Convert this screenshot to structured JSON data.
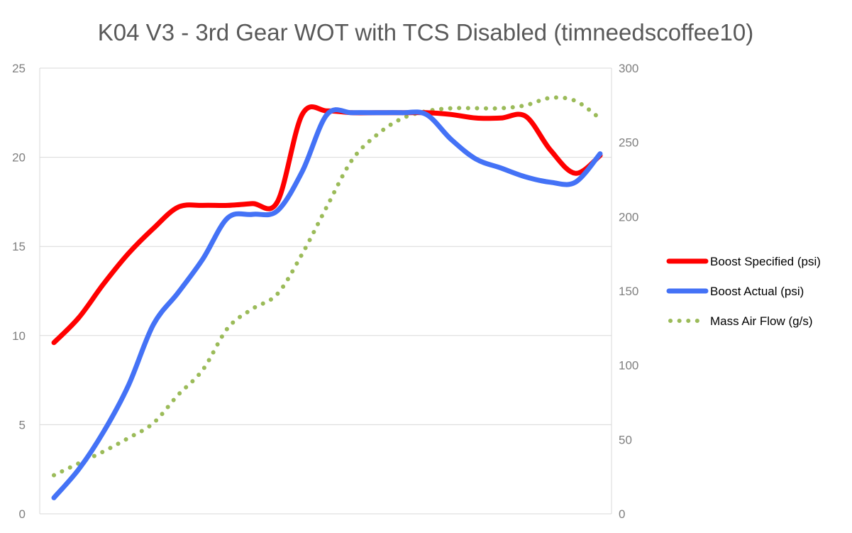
{
  "chart_data": {
    "type": "line",
    "title": "K04 V3 - 3rd Gear WOT with TCS Disabled (timneedscoffee10)",
    "y_left": {
      "range": [
        0,
        25
      ],
      "ticks": [
        "0",
        "5",
        "10",
        "15",
        "20",
        "25"
      ]
    },
    "y_right": {
      "range": [
        0,
        300
      ],
      "ticks": [
        "0",
        "50",
        "100",
        "150",
        "200",
        "250",
        "300"
      ]
    },
    "grid": true,
    "legend_position": "right",
    "series": [
      {
        "name": "Boost Specified (psi)",
        "axis": "left",
        "color": "#ff0000",
        "style": "solid",
        "values": [
          9.6,
          11.0,
          12.9,
          14.6,
          16.0,
          17.2,
          17.3,
          17.3,
          17.4,
          17.5,
          22.4,
          22.6,
          22.5,
          22.5,
          22.5,
          22.5,
          22.4,
          22.2,
          22.2,
          22.3,
          20.4,
          19.1,
          20.1
        ]
      },
      {
        "name": "Boost Actual (psi)",
        "axis": "left",
        "color": "#4472f6",
        "style": "solid",
        "values": [
          0.9,
          2.5,
          4.6,
          7.2,
          10.6,
          12.4,
          14.3,
          16.6,
          16.8,
          17.0,
          19.2,
          22.4,
          22.5,
          22.5,
          22.5,
          22.4,
          21.0,
          19.9,
          19.4,
          18.9,
          18.6,
          18.6,
          20.2
        ]
      },
      {
        "name": "Mass Air Flow (g/s)",
        "axis": "right",
        "color": "#9bbb59",
        "style": "dotted",
        "values": [
          26,
          34,
          42,
          51,
          61,
          80,
          97,
          125,
          138,
          148,
          175,
          207,
          238,
          255,
          266,
          271,
          273,
          273,
          273,
          275,
          280,
          278,
          266
        ]
      }
    ]
  }
}
